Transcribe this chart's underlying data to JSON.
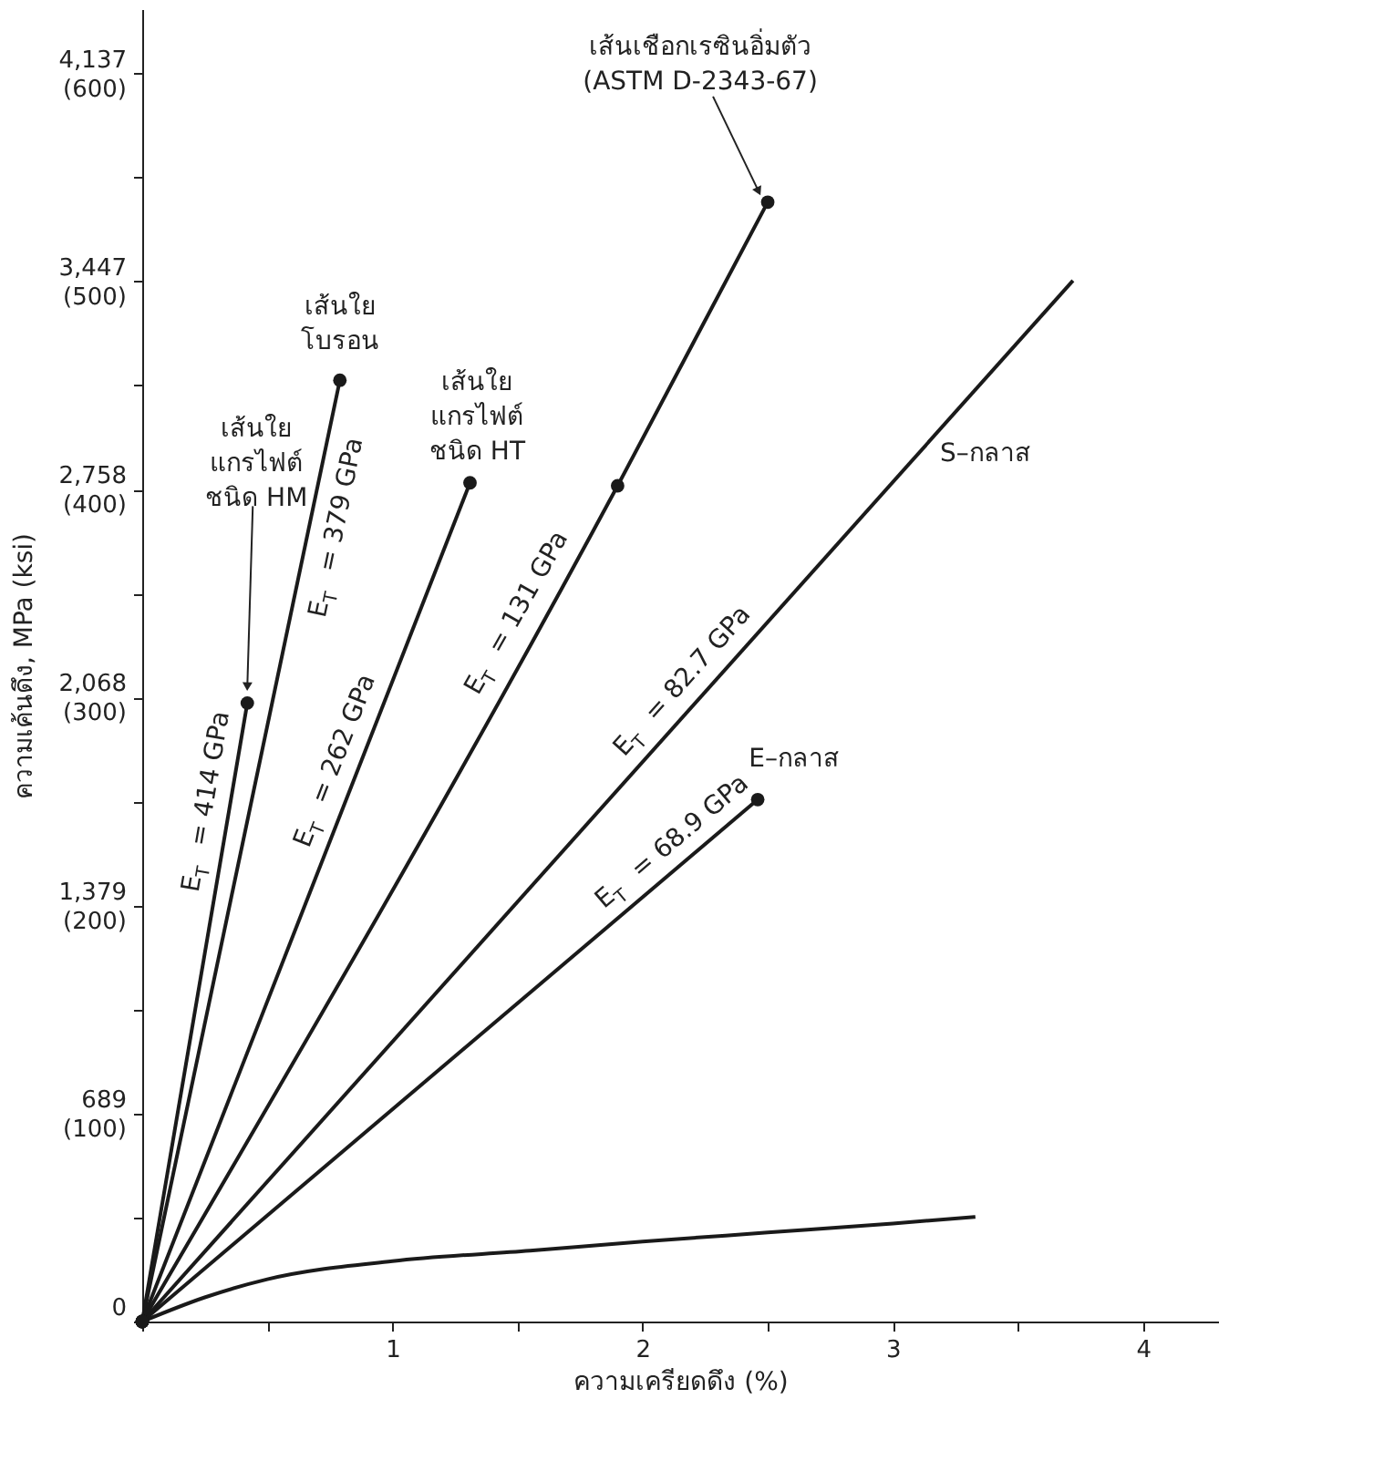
{
  "chart_data": {
    "type": "line",
    "xlabel": "ความเครียดดึง (%)",
    "ylabel": "ความเค้นดึง, MPa (ksi)",
    "xlim": [
      0,
      4.3
    ],
    "ylim": [
      0,
      4350
    ],
    "y2lim": [
      0,
      631
    ],
    "xticks": [
      {
        "value": 0,
        "label": null
      },
      {
        "value": 0.5,
        "label": null
      },
      1,
      {
        "value": 1.5,
        "label": null
      },
      2,
      {
        "value": 2.5,
        "label": null
      },
      3,
      {
        "value": 3.5,
        "label": null
      },
      4
    ],
    "yticks": [
      0,
      {
        "value": 344.5,
        "label": null
      },
      689,
      {
        "value": 1034,
        "label": null
      },
      {
        "value": 1379,
        "label": "1,379"
      },
      {
        "value": 1723.5,
        "label": null
      },
      {
        "value": 2068,
        "label": "2,068"
      },
      {
        "value": 2413,
        "label": null
      },
      {
        "value": 2758,
        "label": "2,758"
      },
      {
        "value": 3102.5,
        "label": null
      },
      {
        "value": 3447,
        "label": "3,447"
      },
      {
        "value": 3792,
        "label": null
      },
      {
        "value": 4137,
        "label": "4,137"
      }
    ],
    "y2ticks": [
      {
        "value": 100,
        "label": "(100)"
      },
      {
        "value": 200,
        "label": "(200)"
      },
      {
        "value": 300,
        "label": "(300)"
      },
      {
        "value": 400,
        "label": "(400)"
      },
      {
        "value": 500,
        "label": "(500)"
      },
      {
        "value": 600,
        "label": "(600)"
      }
    ],
    "grid": false,
    "legend": false,
    "series": [
      {
        "name": "เส้นใย\nแกรไฟต์\nชนิด HM",
        "color": "#1a1a1a",
        "marker": "circle",
        "x": [
          0,
          0.42
        ],
        "values": [
          0,
          2050
        ]
      },
      {
        "name": "เส้นใย\nโบรอน",
        "color": "#1a1a1a",
        "marker": "circle",
        "x": [
          0,
          0.79
        ],
        "values": [
          0,
          3120
        ]
      },
      {
        "name": "เส้นใย\nแกรไฟต์\nชนิด HT",
        "color": "#1a1a1a",
        "marker": "circle",
        "x": [
          0,
          1.31
        ],
        "values": [
          0,
          2780
        ]
      },
      {
        "color": "#1a1a1a",
        "marker": "circle",
        "x": [
          0,
          1.9,
          2.5
        ],
        "values": [
          0,
          2770,
          3710
        ]
      },
      {
        "name": "S–กลาส",
        "color": "#1a1a1a",
        "x": [
          0,
          3.72
        ],
        "values": [
          0,
          3450
        ]
      },
      {
        "name": "E–กลาส",
        "color": "#1a1a1a",
        "marker": "circle",
        "x": [
          0,
          2.46
        ],
        "values": [
          0,
          1730
        ]
      },
      {
        "color": "#1a1a1a",
        "x": [
          0,
          0.25,
          0.5,
          1,
          1.55,
          2,
          2.5,
          3,
          3.33
        ],
        "values": [
          0,
          80,
          140,
          200,
          235,
          265,
          295,
          325,
          347
        ]
      }
    ],
    "annotations": [
      {
        "text": "E$_{T}$ = 414 GPa",
        "x": 0.35,
        "y": 1710
      },
      {
        "text": "E$_{T}$ = 379 GPa",
        "x": 0.67,
        "y": 2650
      },
      {
        "text": "E$_{T}$ = 262 GPa",
        "x": 0.86,
        "y": 1830
      },
      {
        "text": "E$_{T}$ = 131 GPa",
        "x": 1.58,
        "y": 2310
      },
      {
        "text": "E$_{T}$ = 82.7 GPa",
        "x": 2.23,
        "y": 2070
      },
      {
        "text": "E$_{T}$ = 68.9 GPa",
        "x": 2.18,
        "y": 1530
      },
      {
        "text": "เส้นเชือกเรซินอิ่มตัว\n(ASTM D-2343-67)",
        "x": 2.5,
        "y": 3710
      }
    ]
  }
}
